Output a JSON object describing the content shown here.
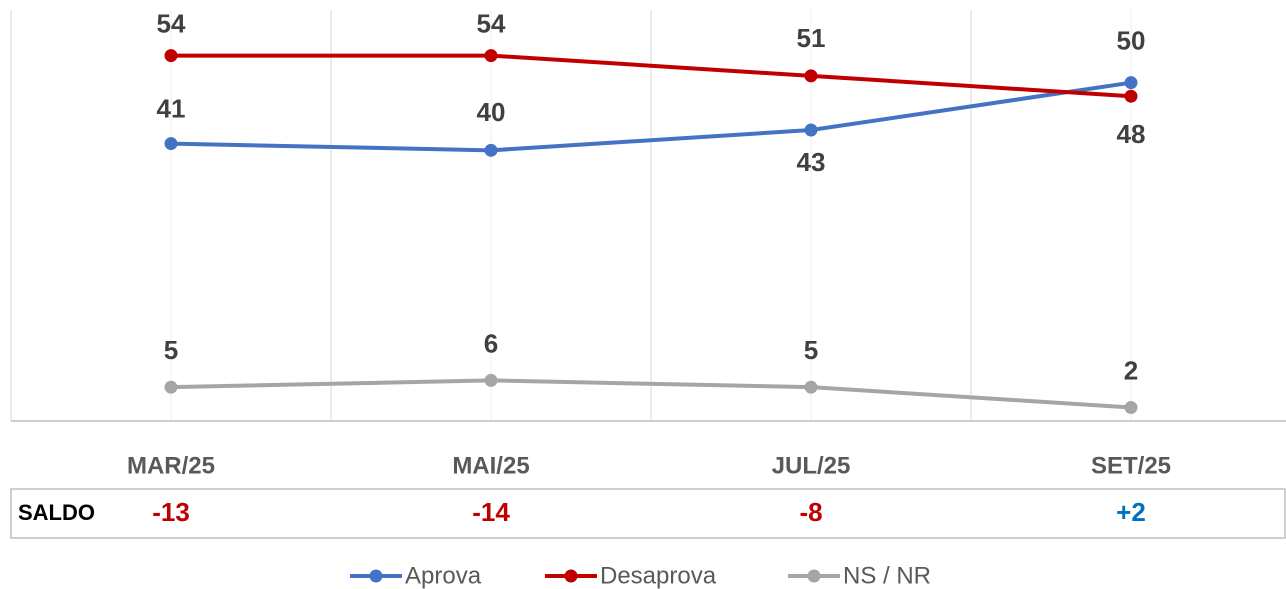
{
  "chart_data": {
    "type": "line",
    "categories": [
      "MAR/25",
      "MAI/25",
      "JUL/25",
      "SET/25"
    ],
    "series": [
      {
        "name": "Aprova",
        "color": "#4472c4",
        "values": [
          41,
          40,
          43,
          50
        ]
      },
      {
        "name": "Desaprova",
        "color": "#c00000",
        "values": [
          54,
          54,
          51,
          48
        ]
      },
      {
        "name": "NS / NR",
        "color": "#a5a5a5",
        "values": [
          5,
          6,
          5,
          2
        ]
      }
    ],
    "ylim": [
      0,
      60
    ],
    "saldo": {
      "label": "SALDO",
      "values": [
        -13,
        -14,
        -8,
        2
      ],
      "value_labels": [
        "-13",
        "-14",
        "-8",
        "+2"
      ],
      "colors": [
        "#c00000",
        "#c00000",
        "#c00000",
        "#0070c0"
      ]
    },
    "legend": "bottom"
  }
}
